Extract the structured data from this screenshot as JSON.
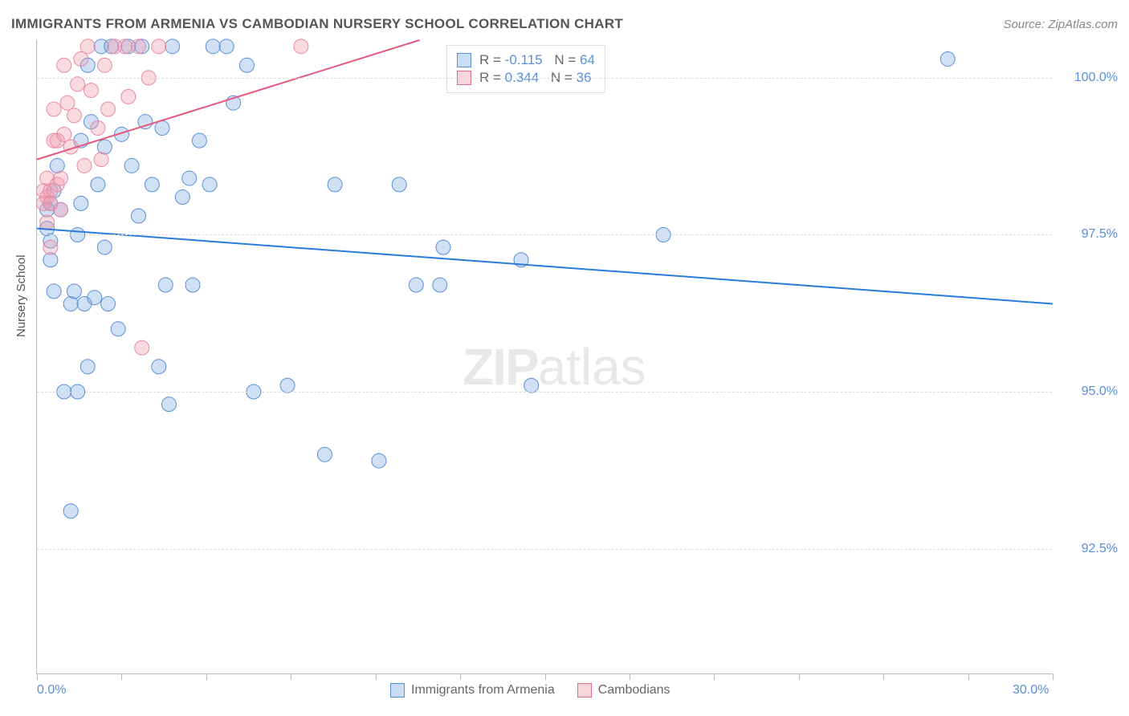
{
  "header": {
    "title": "IMMIGRANTS FROM ARMENIA VS CAMBODIAN NURSERY SCHOOL CORRELATION CHART",
    "source": "Source: ZipAtlas.com"
  },
  "chart": {
    "type": "scatter",
    "ylabel": "Nursery School",
    "xlim": [
      0.0,
      30.0
    ],
    "ylim": [
      90.5,
      100.6
    ],
    "xtick_positions": [
      0,
      2.5,
      5,
      7.5,
      10,
      12.5,
      15,
      17.5,
      20,
      22.5,
      25,
      27.5,
      30
    ],
    "xtick_labels": {
      "0": "0.0%",
      "30": "30.0%"
    },
    "ytick_positions": [
      92.5,
      95.0,
      97.5,
      100.0
    ],
    "ytick_labels": [
      "92.5%",
      "95.0%",
      "97.5%",
      "100.0%"
    ],
    "grid_color": "#dddddd",
    "axis_color": "#bbbbbb",
    "background_color": "#ffffff",
    "watermark": "ZIPatlas",
    "series": [
      {
        "name": "Immigrants from Armenia",
        "color_fill": "rgba(120,170,230,0.35)",
        "color_stroke": "#5b8fd6",
        "marker_radius": 9,
        "R": "-0.115",
        "N": "64",
        "trend": {
          "x1": 0.0,
          "y1": 97.6,
          "x2": 30.0,
          "y2": 96.4,
          "stroke": "#2b7bd9",
          "width": 2
        },
        "points": [
          [
            0.3,
            97.6
          ],
          [
            0.4,
            97.4
          ],
          [
            0.4,
            97.1
          ],
          [
            0.5,
            98.2
          ],
          [
            0.7,
            97.9
          ],
          [
            0.4,
            98.0
          ],
          [
            0.6,
            98.6
          ],
          [
            0.5,
            96.6
          ],
          [
            0.8,
            95.0
          ],
          [
            1.0,
            96.4
          ],
          [
            1.1,
            96.6
          ],
          [
            1.2,
            95.0
          ],
          [
            1.2,
            97.5
          ],
          [
            1.3,
            99.0
          ],
          [
            1.3,
            98.0
          ],
          [
            1.4,
            96.4
          ],
          [
            1.5,
            95.4
          ],
          [
            1.5,
            100.2
          ],
          [
            1.6,
            99.3
          ],
          [
            1.7,
            96.5
          ],
          [
            1.8,
            98.3
          ],
          [
            1.9,
            100.5
          ],
          [
            2.0,
            97.3
          ],
          [
            2.1,
            96.4
          ],
          [
            2.2,
            100.5
          ],
          [
            2.4,
            96.0
          ],
          [
            2.5,
            99.1
          ],
          [
            2.8,
            98.6
          ],
          [
            2.7,
            100.5
          ],
          [
            3.0,
            97.8
          ],
          [
            3.1,
            100.5
          ],
          [
            3.2,
            99.3
          ],
          [
            3.4,
            98.3
          ],
          [
            3.6,
            95.4
          ],
          [
            3.7,
            99.2
          ],
          [
            3.8,
            96.7
          ],
          [
            3.9,
            94.8
          ],
          [
            4.0,
            100.5
          ],
          [
            4.3,
            98.1
          ],
          [
            4.5,
            98.4
          ],
          [
            4.6,
            96.7
          ],
          [
            4.8,
            99.0
          ],
          [
            5.1,
            98.3
          ],
          [
            5.2,
            100.5
          ],
          [
            5.6,
            100.5
          ],
          [
            5.8,
            99.6
          ],
          [
            6.2,
            100.2
          ],
          [
            6.4,
            95.0
          ],
          [
            7.4,
            95.1
          ],
          [
            8.5,
            94.0
          ],
          [
            8.8,
            98.3
          ],
          [
            10.1,
            93.9
          ],
          [
            10.7,
            98.3
          ],
          [
            11.2,
            96.7
          ],
          [
            11.9,
            96.7
          ],
          [
            12.0,
            97.3
          ],
          [
            14.3,
            97.1
          ],
          [
            14.6,
            95.1
          ],
          [
            16.0,
            100.4
          ],
          [
            18.5,
            97.5
          ],
          [
            1.0,
            93.1
          ],
          [
            26.9,
            100.3
          ],
          [
            2.0,
            98.9
          ],
          [
            0.3,
            97.9
          ]
        ]
      },
      {
        "name": "Cambodians",
        "color_fill": "rgba(240,150,170,0.35)",
        "color_stroke": "#e88aa2",
        "marker_radius": 9,
        "R": "0.344",
        "N": "36",
        "trend": {
          "x1": 0.0,
          "y1": 98.7,
          "x2": 11.3,
          "y2": 100.6,
          "stroke": "#e25b7e",
          "width": 2
        },
        "points": [
          [
            0.2,
            98.0
          ],
          [
            0.2,
            98.2
          ],
          [
            0.3,
            97.7
          ],
          [
            0.3,
            98.4
          ],
          [
            0.3,
            98.1
          ],
          [
            0.4,
            98.2
          ],
          [
            0.4,
            98.0
          ],
          [
            0.4,
            97.3
          ],
          [
            0.5,
            99.0
          ],
          [
            0.5,
            99.5
          ],
          [
            0.6,
            98.3
          ],
          [
            0.6,
            99.0
          ],
          [
            0.7,
            98.4
          ],
          [
            0.7,
            97.9
          ],
          [
            0.8,
            100.2
          ],
          [
            0.8,
            99.1
          ],
          [
            0.9,
            99.6
          ],
          [
            1.0,
            98.9
          ],
          [
            1.1,
            99.4
          ],
          [
            1.2,
            99.9
          ],
          [
            1.3,
            100.3
          ],
          [
            1.4,
            98.6
          ],
          [
            1.5,
            100.5
          ],
          [
            1.6,
            99.8
          ],
          [
            1.8,
            99.2
          ],
          [
            1.9,
            98.7
          ],
          [
            2.0,
            100.2
          ],
          [
            2.1,
            99.5
          ],
          [
            2.3,
            100.5
          ],
          [
            2.6,
            100.5
          ],
          [
            2.7,
            99.7
          ],
          [
            3.0,
            100.5
          ],
          [
            3.1,
            95.7
          ],
          [
            3.3,
            100.0
          ],
          [
            3.6,
            100.5
          ],
          [
            7.8,
            100.5
          ]
        ]
      }
    ],
    "legend_bottom": [
      {
        "swatch": "blue",
        "label": "Immigrants from Armenia"
      },
      {
        "swatch": "pink",
        "label": "Cambodians"
      }
    ],
    "legend_top_rows": [
      {
        "swatch": "blue",
        "R": "-0.115",
        "N": "64"
      },
      {
        "swatch": "pink",
        "R": "0.344",
        "N": "36"
      }
    ]
  }
}
